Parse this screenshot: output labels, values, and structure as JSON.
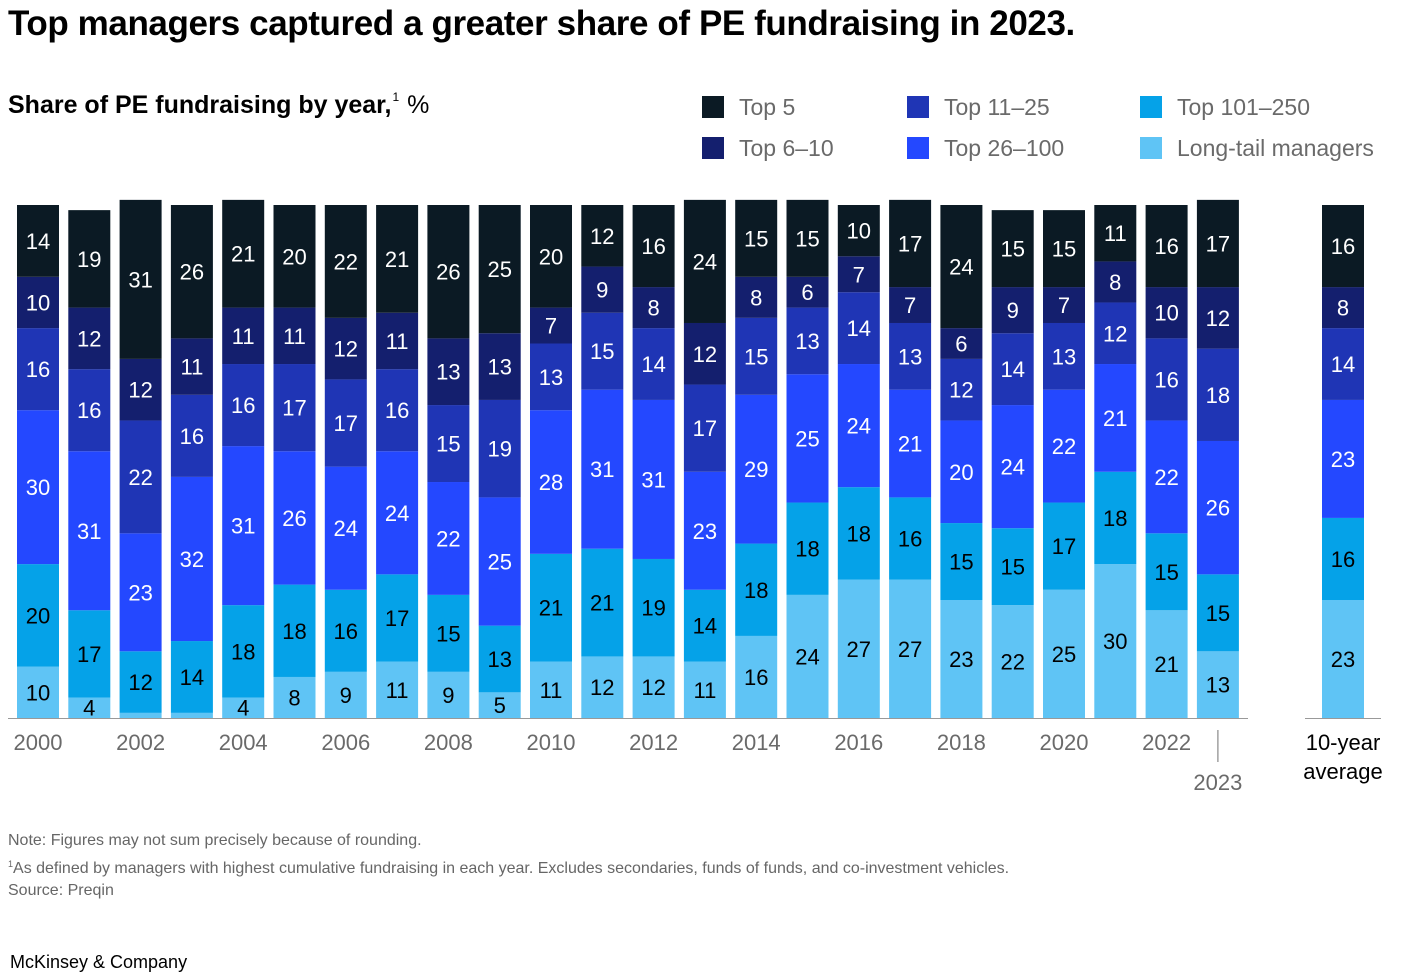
{
  "title": "Top managers captured a greater share of PE fundraising in 2023.",
  "subtitle": {
    "bold": "Share of PE fundraising by year,",
    "footnote_mark": "1",
    "unit": "%"
  },
  "legend": [
    {
      "label": "Top 5",
      "color": "#0b1a24"
    },
    {
      "label": "Top 6–10",
      "color": "#141f6e"
    },
    {
      "label": "Top 11–25",
      "color": "#1f35b5"
    },
    {
      "label": "Top 26–100",
      "color": "#2448ff"
    },
    {
      "label": "Top 101–250",
      "color": "#05a2e8"
    },
    {
      "label": "Long-tail managers",
      "color": "#5fc4f5"
    }
  ],
  "chart_data": {
    "type": "bar",
    "stacked": true,
    "title": "Share of PE fundraising by year",
    "ylabel": "%",
    "ylim": [
      0,
      100
    ],
    "categories": [
      "2000",
      "2001",
      "2002",
      "2003",
      "2004",
      "2005",
      "2006",
      "2007",
      "2008",
      "2009",
      "2010",
      "2011",
      "2012",
      "2013",
      "2014",
      "2015",
      "2016",
      "2017",
      "2018",
      "2019",
      "2020",
      "2021",
      "2022",
      "2023"
    ],
    "tick_labels": [
      "2000",
      "2002",
      "2004",
      "2006",
      "2008",
      "2010",
      "2012",
      "2014",
      "2016",
      "2018",
      "2020",
      "2022"
    ],
    "highlight_label": "2023",
    "series": [
      {
        "name": "Long-tail managers",
        "values": [
          10,
          4,
          1,
          1,
          4,
          8,
          9,
          11,
          9,
          5,
          11,
          12,
          12,
          11,
          16,
          24,
          27,
          27,
          23,
          22,
          25,
          30,
          21,
          13
        ]
      },
      {
        "name": "Top 101–250",
        "values": [
          20,
          17,
          12,
          14,
          18,
          18,
          16,
          17,
          15,
          13,
          21,
          21,
          19,
          14,
          18,
          18,
          18,
          16,
          15,
          15,
          17,
          18,
          15,
          15
        ]
      },
      {
        "name": "Top 26–100",
        "values": [
          30,
          31,
          23,
          32,
          31,
          26,
          24,
          24,
          22,
          25,
          28,
          31,
          31,
          23,
          29,
          25,
          24,
          21,
          20,
          24,
          22,
          21,
          22,
          26
        ]
      },
      {
        "name": "Top 11–25",
        "values": [
          16,
          16,
          22,
          16,
          16,
          17,
          17,
          16,
          15,
          19,
          13,
          15,
          14,
          17,
          15,
          13,
          14,
          13,
          12,
          14,
          13,
          12,
          16,
          18
        ]
      },
      {
        "name": "Top 6–10",
        "values": [
          10,
          12,
          12,
          11,
          11,
          11,
          12,
          11,
          13,
          13,
          7,
          9,
          8,
          12,
          8,
          6,
          7,
          7,
          6,
          9,
          7,
          8,
          10,
          12
        ]
      },
      {
        "name": "Top 5",
        "values": [
          14,
          19,
          31,
          26,
          21,
          20,
          22,
          21,
          26,
          25,
          20,
          12,
          16,
          24,
          15,
          15,
          10,
          17,
          24,
          15,
          15,
          11,
          16,
          17
        ]
      }
    ],
    "average": {
      "label_line1": "10-year",
      "label_line2": "average",
      "values": [
        23,
        16,
        23,
        14,
        8,
        16
      ]
    }
  },
  "notes": {
    "note": "Note: Figures may not sum precisely because of rounding.",
    "footnote_mark": "1",
    "footnote": "As defined by managers with highest cumulative fundraising in each year. Excludes secondaries, funds of funds, and co-investment vehicles.",
    "source": "Source: Preqin"
  },
  "brand": "McKinsey & Company"
}
